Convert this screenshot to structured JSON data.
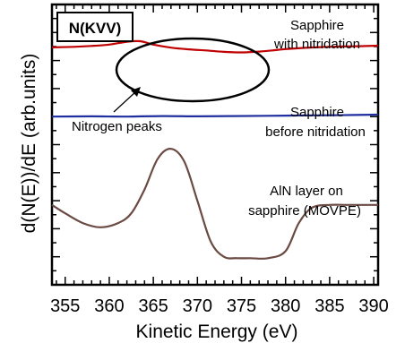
{
  "chart_data": {
    "type": "line",
    "title": "",
    "xlabel": "Kinetic Energy (eV)",
    "ylabel": "d(N(E))/dE (arb.units)",
    "xlim": [
      353.5,
      390.5
    ],
    "ylim": [
      0,
      100
    ],
    "xticks": [
      355,
      360,
      365,
      370,
      375,
      380,
      385,
      390
    ],
    "grid": false,
    "y_tick_labels_shown": false,
    "series": [
      {
        "name": "",
        "color": "#c00000",
        "label_lines": [
          "Sapphire",
          "with nitridation"
        ],
        "x": [
          353.5,
          356,
          358,
          360,
          362,
          363.5,
          365,
          367,
          369,
          371,
          373,
          375,
          377,
          378.5,
          380,
          382,
          384,
          386,
          388,
          390.5
        ],
        "y": [
          84.7,
          84.9,
          85.2,
          85.7,
          86.7,
          86.9,
          85.7,
          84.6,
          84.0,
          83.6,
          83.1,
          82.9,
          83.2,
          83.6,
          84.1,
          84.5,
          84.8,
          85.0,
          85.1,
          85.3
        ]
      },
      {
        "name": "",
        "color": "#1f2f9f",
        "label_lines": [
          "Sapphire",
          "before nitridation"
        ],
        "x": [
          353.5,
          358,
          362,
          366,
          370,
          374,
          378,
          382,
          386,
          390.5
        ],
        "y": [
          60.0,
          60.1,
          60.0,
          60.2,
          60.1,
          60.2,
          60.3,
          60.4,
          60.5,
          60.7
        ]
      },
      {
        "name": "",
        "color": "#6b4a43",
        "label_lines": [
          "AlN layer on",
          "sapphire (MOVPE)"
        ],
        "x": [
          353.5,
          355,
          357,
          359,
          361,
          362.5,
          364,
          365.5,
          367,
          368.5,
          370,
          371.5,
          373,
          374.5,
          376,
          378,
          380,
          381.5,
          383,
          385,
          387,
          390.5
        ],
        "y": [
          28.5,
          25.5,
          22.0,
          20.5,
          22.0,
          25.5,
          34.0,
          45.0,
          48.5,
          44.0,
          30.0,
          15.5,
          10.0,
          9.5,
          9.5,
          9.5,
          12.0,
          22.0,
          27.5,
          28.5,
          28.5,
          28.5
        ]
      }
    ],
    "annotations": {
      "box_label": "N(KVV)",
      "arrow_label": "Nitrogen peaks"
    }
  }
}
